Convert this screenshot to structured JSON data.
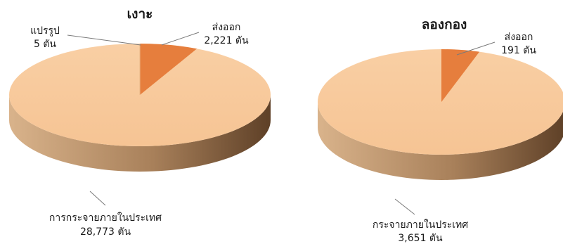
{
  "colors": {
    "main_slice": "#f7c89b",
    "main_slice_side_light": "#c9a27b",
    "main_slice_side_dark": "#6e5035",
    "export_slice": "#e67e3d",
    "export_slice_side": "#a4511f",
    "leader_line": "#7a7a7a",
    "text": "#1a1a1a"
  },
  "chart_data": [
    {
      "type": "pie",
      "title": "เงาะ",
      "slices": [
        {
          "label": "แปรรูป",
          "value": 5,
          "display": "5 ตัน",
          "color": "#f7c89b"
        },
        {
          "label": "ส่งออก",
          "value": 2221,
          "display": "2,221 ตัน",
          "color": "#e67e3d"
        },
        {
          "label": "การกระจายภายในประเทศ",
          "value": 28773,
          "display": "28,773 ตัน",
          "color": "#f7c89b"
        }
      ]
    },
    {
      "type": "pie",
      "title": "ลองกอง",
      "slices": [
        {
          "label": "ส่งออก",
          "value": 191,
          "display": "191 ตัน",
          "color": "#e67e3d"
        },
        {
          "label": "กระจายภายในประเทศ",
          "value": 3651,
          "display": "3,651 ตัน",
          "color": "#f7c89b"
        }
      ]
    }
  ]
}
